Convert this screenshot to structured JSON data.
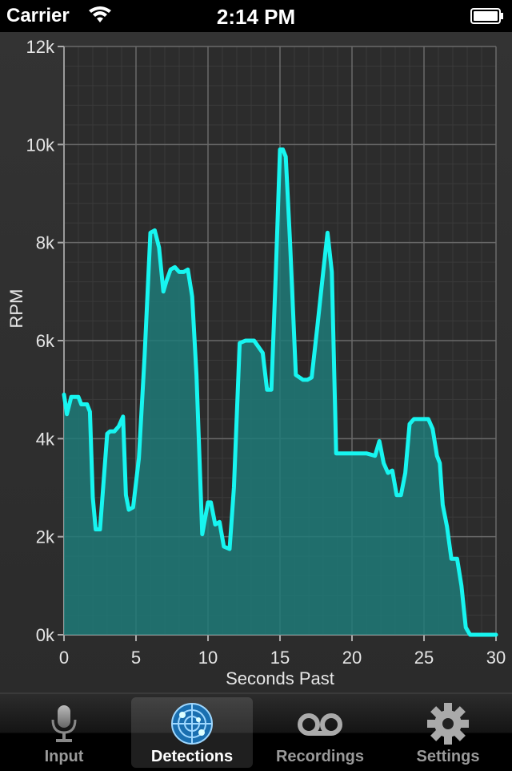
{
  "status_bar": {
    "carrier": "Carrier",
    "time": "2:14 PM"
  },
  "chart_data": {
    "type": "area",
    "xlabel": "Seconds Past",
    "ylabel": "RPM",
    "xlim": [
      0,
      30
    ],
    "ylim": [
      0,
      12000
    ],
    "x_ticks": [
      "0",
      "5",
      "10",
      "15",
      "20",
      "25",
      "30"
    ],
    "y_ticks": [
      "0k",
      "2k",
      "4k",
      "6k",
      "8k",
      "10k",
      "12k"
    ],
    "grid": true,
    "line_color": "#17f5f0",
    "fill_color": "#1e7a78",
    "x": [
      0,
      0.2,
      0.5,
      1.0,
      1.2,
      1.6,
      1.8,
      2.0,
      2.2,
      2.5,
      3.0,
      3.2,
      3.5,
      3.8,
      4.1,
      4.3,
      4.5,
      4.8,
      5.2,
      5.6,
      6.0,
      6.3,
      6.6,
      6.9,
      7.1,
      7.4,
      7.7,
      8.0,
      8.3,
      8.6,
      8.9,
      9.2,
      9.6,
      10.0,
      10.2,
      10.5,
      10.8,
      11.1,
      11.5,
      11.8,
      12.2,
      12.6,
      12.9,
      13.2,
      13.8,
      14.1,
      14.4,
      14.7,
      15.0,
      15.2,
      15.4,
      15.7,
      16.1,
      16.6,
      16.9,
      17.2,
      17.6,
      18.0,
      18.3,
      18.6,
      18.9,
      19.2,
      19.7,
      20.2,
      21.0,
      21.6,
      21.9,
      22.2,
      22.5,
      22.8,
      23.1,
      23.4,
      23.7,
      24.0,
      24.3,
      24.6,
      25.0,
      25.3,
      25.6,
      25.9,
      26.1,
      26.3,
      26.6,
      26.9,
      27.3,
      27.6,
      27.9,
      28.2,
      28.5,
      29.0,
      30.0
    ],
    "values": [
      4900,
      4500,
      4850,
      4850,
      4700,
      4700,
      4550,
      2800,
      2150,
      2150,
      4100,
      4150,
      4150,
      4250,
      4450,
      2850,
      2550,
      2600,
      3600,
      5700,
      8200,
      8250,
      7900,
      7000,
      7200,
      7450,
      7500,
      7400,
      7400,
      7450,
      6900,
      5300,
      2050,
      2700,
      2700,
      2250,
      2300,
      1800,
      1750,
      3000,
      5950,
      6000,
      6000,
      6000,
      5750,
      5000,
      5000,
      7300,
      9900,
      9900,
      9750,
      8000,
      5300,
      5200,
      5200,
      5250,
      6300,
      7400,
      8200,
      7400,
      3700,
      3700,
      3700,
      3700,
      3700,
      3650,
      3950,
      3500,
      3300,
      3350,
      2850,
      2850,
      3300,
      4300,
      4400,
      4400,
      4400,
      4400,
      4200,
      3650,
      3500,
      2650,
      2200,
      1550,
      1550,
      1000,
      150,
      0,
      0,
      0,
      0
    ]
  },
  "tabs": [
    {
      "label": "Input",
      "icon": "microphone-icon",
      "active": false
    },
    {
      "label": "Detections",
      "icon": "radar-icon",
      "active": true
    },
    {
      "label": "Recordings",
      "icon": "voicemail-icon",
      "active": false
    },
    {
      "label": "Settings",
      "icon": "gear-icon",
      "active": false
    }
  ]
}
